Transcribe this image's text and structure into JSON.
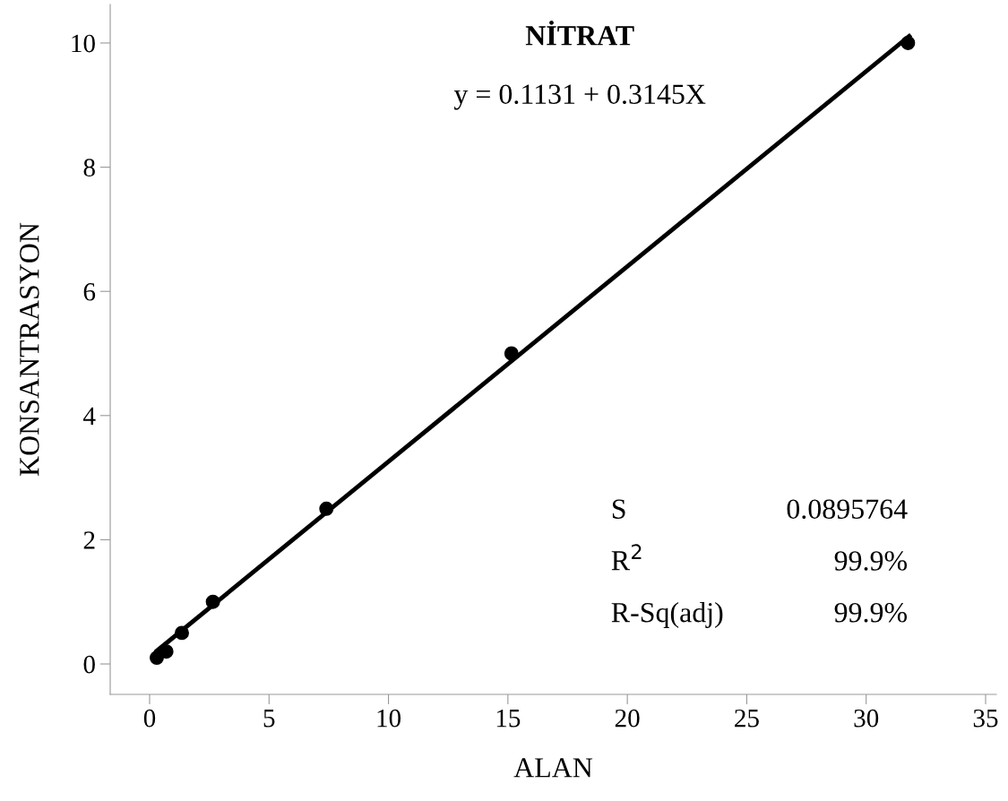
{
  "chart_data": {
    "type": "scatter",
    "title": "NİTRAT",
    "subtitle": "y = 0.1131 + 0.3145X",
    "xlabel": "ALAN",
    "ylabel": "KONSANTRASYON",
    "series": [
      {
        "marker": "circle",
        "color": "#000000",
        "x": [
          0.3,
          0.7,
          1.35,
          2.65,
          7.4,
          15.15,
          31.75
        ],
        "values": [
          0.1,
          0.2,
          0.5,
          1.0,
          2.5,
          5.0,
          10.0
        ]
      },
      {
        "type": "line",
        "marker": "none",
        "color": "#000000",
        "x": [
          0.3,
          31.8
        ],
        "values": [
          0.21,
          10.11
        ]
      }
    ],
    "annotations": [
      "S",
      "0.0895764",
      "R$^{2}$",
      "99.9%",
      "R-Sq(adj)",
      "99.9%"
    ],
    "xlim": [
      -1.65,
      35.45
    ],
    "ylim": [
      -0.49,
      10.62
    ],
    "xticks": [
      0,
      5,
      10,
      15,
      20,
      25,
      30,
      35
    ],
    "yticks": [
      0,
      2,
      4,
      6,
      8,
      10
    ],
    "grid": false
  }
}
